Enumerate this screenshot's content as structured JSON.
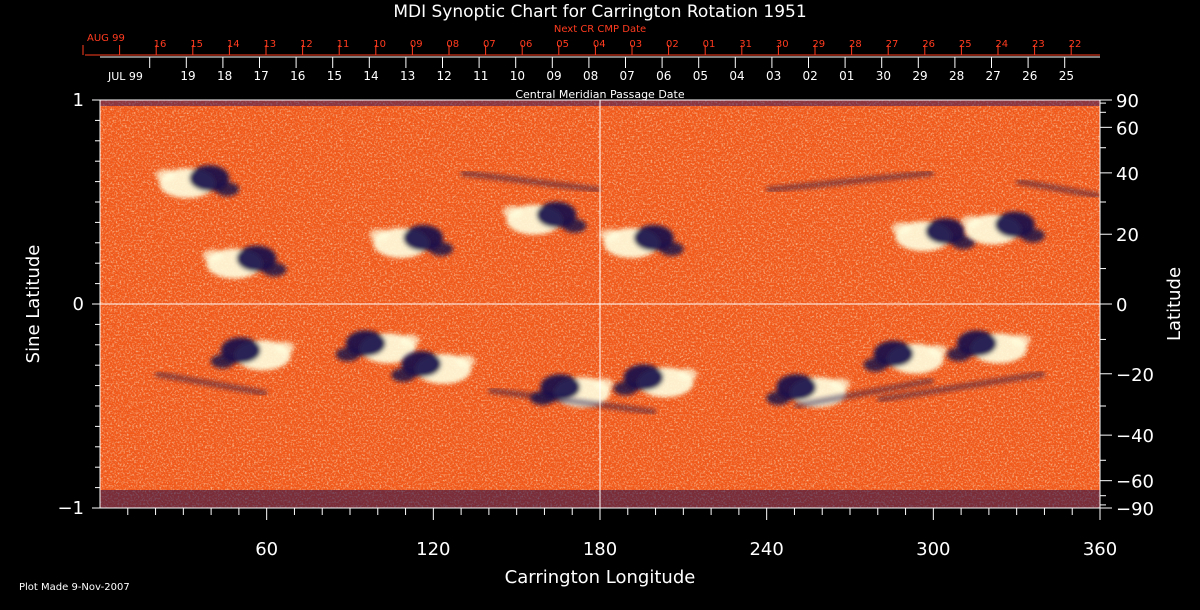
{
  "title": "MDI Synoptic Chart for Carrington Rotation 1951",
  "next_cr_label": "Next CR CMP Date",
  "cmp_label": "Central Meridian Passage Date",
  "top_month_label": "AUG 99",
  "bottom_month_label": "JUL 99",
  "top_dates": [
    "16",
    "15",
    "14",
    "13",
    "12",
    "11",
    "10",
    "09",
    "08",
    "07",
    "06",
    "05",
    "04",
    "03",
    "02",
    "01",
    "31",
    "30",
    "29",
    "28",
    "27",
    "26",
    "25",
    "24",
    "23",
    "22"
  ],
  "bottom_dates": [
    "19",
    "18",
    "17",
    "16",
    "15",
    "14",
    "13",
    "12",
    "11",
    "10",
    "09",
    "08",
    "07",
    "06",
    "05",
    "04",
    "03",
    "02",
    "01",
    "30",
    "29",
    "28",
    "27",
    "26",
    "25"
  ],
  "footer": "Plot Made  9-Nov-2007",
  "colors": {
    "background": "#000000",
    "accent_red": "#ff3b1f",
    "map_base": "#f25a1a",
    "positive_polarity": "#ffffe0",
    "negative_polarity": "#14104a"
  },
  "chart_data": {
    "type": "heatmap",
    "title": "MDI Synoptic Chart for Carrington Rotation 1951",
    "xlabel": "Carrington Longitude",
    "ylabel": "Sine Latitude",
    "y2label": "Latitude",
    "xlim": [
      0,
      360
    ],
    "ylim": [
      -1,
      1
    ],
    "x_ticks": [
      60,
      120,
      180,
      240,
      300,
      360
    ],
    "y_ticks": [
      "1",
      "0",
      "−1"
    ],
    "y2_ticks": [
      90,
      60,
      40,
      20,
      0,
      -20,
      -40,
      -60,
      -90
    ],
    "grid_lines": {
      "x": 180,
      "y": 0
    },
    "regions": [
      {
        "lon": 35,
        "lat": 37,
        "polarity": "mixed"
      },
      {
        "lon": 52,
        "lat": 12,
        "polarity": "mixed"
      },
      {
        "lon": 112,
        "lat": 18,
        "polarity": "mixed"
      },
      {
        "lon": 160,
        "lat": 25,
        "polarity": "mixed"
      },
      {
        "lon": 195,
        "lat": 18,
        "polarity": "mixed"
      },
      {
        "lon": 300,
        "lat": 20,
        "polarity": "mixed"
      },
      {
        "lon": 325,
        "lat": 22,
        "polarity": "mixed"
      },
      {
        "lon": 55,
        "lat": -14,
        "polarity": "mixed"
      },
      {
        "lon": 100,
        "lat": -12,
        "polarity": "mixed"
      },
      {
        "lon": 120,
        "lat": -18,
        "polarity": "mixed"
      },
      {
        "lon": 170,
        "lat": -25,
        "polarity": "mixed"
      },
      {
        "lon": 200,
        "lat": -22,
        "polarity": "mixed"
      },
      {
        "lon": 255,
        "lat": -25,
        "polarity": "mixed"
      },
      {
        "lon": 290,
        "lat": -15,
        "polarity": "mixed"
      },
      {
        "lon": 320,
        "lat": -12,
        "polarity": "mixed"
      }
    ]
  }
}
